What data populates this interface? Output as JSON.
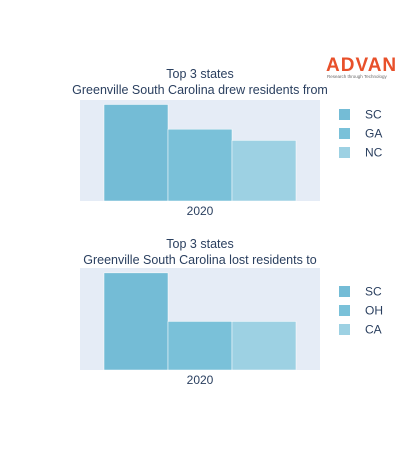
{
  "logo": {
    "name": "ADVAN",
    "tagline": "Research through Technology",
    "color": "#e8502a"
  },
  "colors": {
    "plot_bg": "#e5ecf6",
    "bar_dark": "#74bcd6",
    "bar_mid": "#7ac1d9",
    "bar_light": "#9dd1e3",
    "bar_outline": "#ffffff",
    "text": "#2a3f5f"
  },
  "chart_data": [
    {
      "type": "bar",
      "barmode": "group",
      "title_lines": [
        "Top 3 states",
        "Greenville South Carolina drew residents from"
      ],
      "categories": [
        "2020"
      ],
      "series": [
        {
          "name": "SC",
          "values": [
            4.3
          ],
          "color": "#74bcd6"
        },
        {
          "name": "GA",
          "values": [
            3.2
          ],
          "color": "#7ac1d9"
        },
        {
          "name": "NC",
          "values": [
            2.7
          ],
          "color": "#9dd1e3"
        }
      ],
      "ylim": [
        0,
        4.5
      ],
      "grid": false,
      "y_ticks_visible": false,
      "legend_placement": "right"
    },
    {
      "type": "bar",
      "barmode": "group",
      "title_lines": [
        "Top 3 states",
        "Greenville South Carolina lost residents to"
      ],
      "categories": [
        "2020"
      ],
      "series": [
        {
          "name": "SC",
          "values": [
            4.0
          ],
          "color": "#74bcd6"
        },
        {
          "name": "OH",
          "values": [
            2.0
          ],
          "color": "#7ac1d9"
        },
        {
          "name": "CA",
          "values": [
            2.0
          ],
          "color": "#9dd1e3"
        }
      ],
      "ylim": [
        0,
        4.2
      ],
      "grid": false,
      "y_ticks_visible": false,
      "legend_placement": "right"
    }
  ]
}
